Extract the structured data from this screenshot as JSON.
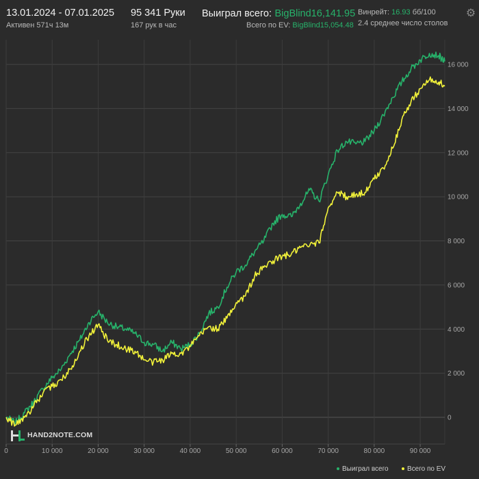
{
  "header": {
    "date_range": "13.01.2024 - 07.01.2025",
    "active_time": "Активен 571ч 13м",
    "hands": "95 341 Руки",
    "hands_per_hour": "167 рук в час",
    "won_label": "Выиграл всего:",
    "won_value": "BigBlind16,141.95",
    "ev_label": "Всего по EV:",
    "ev_value": "BigBlind15,054.48",
    "winrate_label": "Винрейт:",
    "winrate_value": "16.93",
    "winrate_unit": "бб/100",
    "tables": "2.4 среднее число столов"
  },
  "brand": {
    "logo_text": "HAND2NOTE.COM"
  },
  "colors": {
    "won": "#27b36b",
    "ev": "#f2f23a",
    "background": "#2b2b2b",
    "grid": "#444444"
  },
  "icons": {
    "settings": "gear-icon",
    "logo": "hand2note-logo-icon"
  },
  "chart_data": {
    "type": "line",
    "xlim": [
      0,
      95341
    ],
    "ylim": [
      -400,
      17000
    ],
    "x_ticks": [
      0,
      10000,
      20000,
      30000,
      40000,
      50000,
      60000,
      70000,
      80000,
      90000
    ],
    "x_tick_labels": [
      "0",
      "10 000",
      "20 000",
      "30 000",
      "40 000",
      "50 000",
      "60 000",
      "70 000",
      "80 000",
      "90 000"
    ],
    "y_ticks": [
      0,
      2000,
      4000,
      6000,
      8000,
      10000,
      12000,
      14000,
      16000
    ],
    "y_tick_labels": [
      "0",
      "2 000",
      "4 000",
      "6 000",
      "8 000",
      "10 000",
      "12 000",
      "14 000",
      "16 000"
    ],
    "grid": true,
    "legend_position": "bottom-right",
    "series": [
      {
        "name": "Выиграл всего",
        "color": "#27b36b",
        "x": [
          0,
          2000,
          4000,
          6000,
          8000,
          10000,
          12000,
          14000,
          16000,
          18000,
          20000,
          22000,
          24000,
          26000,
          28000,
          30000,
          32000,
          34000,
          36000,
          38000,
          40000,
          42000,
          44000,
          46000,
          48000,
          50000,
          52000,
          54000,
          56000,
          58000,
          60000,
          62000,
          64000,
          66000,
          68000,
          70000,
          72000,
          74000,
          76000,
          78000,
          80000,
          82000,
          84000,
          86000,
          88000,
          90000,
          92000,
          94000,
          95341
        ],
        "values": [
          0,
          -250,
          200,
          700,
          1300,
          1800,
          2200,
          2900,
          3500,
          4300,
          4800,
          4300,
          4100,
          4000,
          3800,
          3400,
          3300,
          3000,
          3400,
          3100,
          3300,
          3800,
          4700,
          5000,
          5900,
          6600,
          6900,
          7500,
          8000,
          8800,
          9200,
          9100,
          9700,
          10300,
          9800,
          11000,
          12100,
          12500,
          12400,
          12500,
          13000,
          13700,
          14500,
          15200,
          15800,
          16200,
          16500,
          16400,
          16140
        ]
      },
      {
        "name": "Всего по EV",
        "color": "#f2f23a",
        "x": [
          0,
          2000,
          4000,
          6000,
          8000,
          10000,
          12000,
          14000,
          16000,
          18000,
          20000,
          22000,
          24000,
          26000,
          28000,
          30000,
          32000,
          34000,
          36000,
          38000,
          40000,
          42000,
          44000,
          46000,
          48000,
          50000,
          52000,
          54000,
          56000,
          58000,
          60000,
          62000,
          64000,
          66000,
          68000,
          70000,
          72000,
          74000,
          76000,
          78000,
          80000,
          82000,
          84000,
          86000,
          88000,
          90000,
          92000,
          94000,
          95341
        ],
        "values": [
          0,
          -350,
          0,
          500,
          1100,
          1400,
          1700,
          2200,
          3000,
          3700,
          4200,
          3500,
          3300,
          3100,
          3000,
          2600,
          2500,
          2600,
          2900,
          2900,
          3200,
          3700,
          4100,
          4000,
          4500,
          5200,
          5500,
          6400,
          6800,
          7100,
          7300,
          7400,
          7700,
          7800,
          7900,
          9500,
          10200,
          10000,
          10100,
          10200,
          10800,
          11300,
          12200,
          13500,
          14300,
          14900,
          15300,
          15200,
          15050
        ]
      }
    ]
  },
  "legend": {
    "won": "Выиграл всего",
    "ev": "Всего по EV"
  }
}
